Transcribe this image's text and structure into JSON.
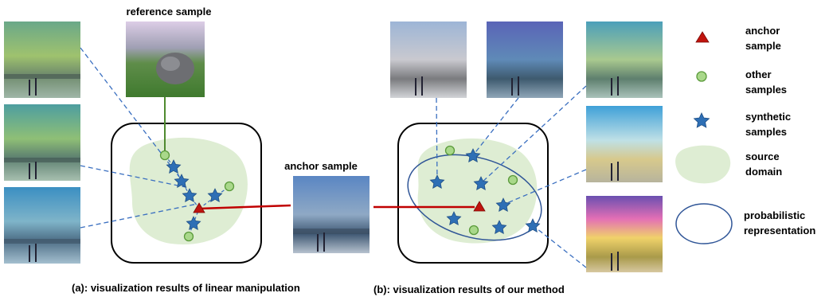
{
  "labels": {
    "reference_sample": "reference sample",
    "anchor_sample_center": "anchor sample",
    "caption_a": "(a): visualization results of linear manipulation",
    "caption_b": "(b): visualization results of our method"
  },
  "legend": {
    "anchor": [
      "anchor",
      "sample"
    ],
    "other": [
      "other",
      "samples"
    ],
    "synthetic": [
      "synthetic",
      "samples"
    ],
    "source": [
      "source",
      "domain"
    ],
    "prob": [
      "probabilistic",
      "representation"
    ]
  },
  "colors": {
    "anchor": "#c0140e",
    "other_fill": "#a9d88a",
    "other_stroke": "#5a9a3a",
    "star": "#2e6fb5",
    "source_domain": "#deedd3",
    "ellipse": "#2f5597",
    "dash": "#3a6fc0",
    "ref_line": "#4f8a2f",
    "anchor_line": "#c00000"
  },
  "icons": {
    "anchor": "triangle-icon",
    "other": "circle-icon",
    "synthetic": "star-icon",
    "source": "blob-icon",
    "prob": "ellipse-icon"
  }
}
